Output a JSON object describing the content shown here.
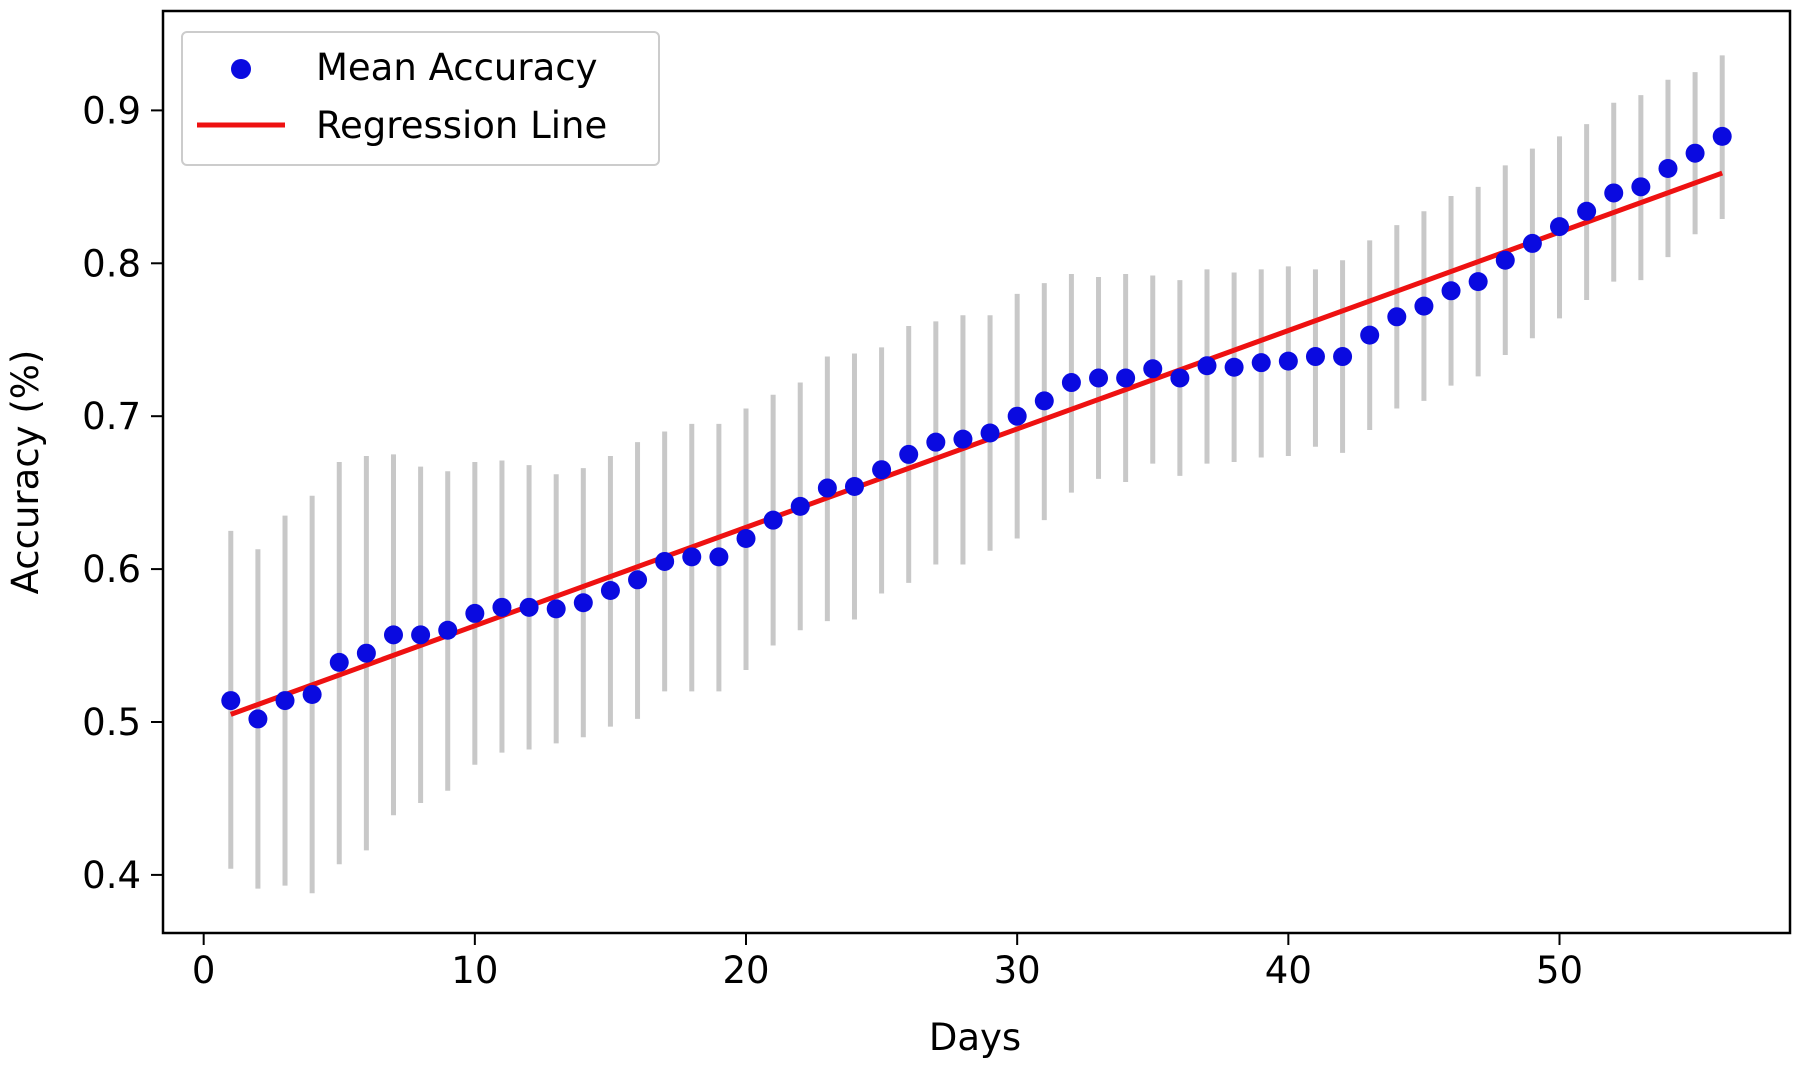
{
  "chart_data": {
    "type": "scatter",
    "xlabel": "Days",
    "ylabel": "Accuracy (%)",
    "xlim": [
      -1.5,
      58.5
    ],
    "ylim": [
      0.362,
      0.965
    ],
    "xticks": [
      0,
      10,
      20,
      30,
      40,
      50
    ],
    "yticks": [
      0.4,
      0.5,
      0.6,
      0.7,
      0.8,
      0.9
    ],
    "xtick_labels": [
      "0",
      "10",
      "20",
      "30",
      "40",
      "50"
    ],
    "ytick_labels": [
      "0.4",
      "0.5",
      "0.6",
      "0.7",
      "0.8",
      "0.9"
    ],
    "grid": false,
    "legend_position": "top-left",
    "legend": [
      {
        "label": "Mean Accuracy",
        "marker": "dot"
      },
      {
        "label": "Regression Line",
        "marker": "line"
      }
    ],
    "colors": {
      "points": "#0a0ae0",
      "regression": "#ee1111",
      "error_bars": "#c8c8c8"
    },
    "series": [
      {
        "name": "Mean Accuracy",
        "x": [
          1,
          2,
          3,
          4,
          5,
          6,
          7,
          8,
          9,
          10,
          11,
          12,
          13,
          14,
          15,
          16,
          17,
          18,
          19,
          20,
          21,
          22,
          23,
          24,
          25,
          26,
          27,
          28,
          29,
          30,
          31,
          32,
          33,
          34,
          35,
          36,
          37,
          38,
          39,
          40,
          41,
          42,
          43,
          44,
          45,
          46,
          47,
          48,
          49,
          50,
          51,
          52,
          53,
          54,
          55,
          56
        ],
        "y": [
          0.514,
          0.502,
          0.514,
          0.518,
          0.539,
          0.545,
          0.557,
          0.557,
          0.56,
          0.571,
          0.575,
          0.575,
          0.574,
          0.578,
          0.586,
          0.593,
          0.605,
          0.608,
          0.608,
          0.62,
          0.632,
          0.641,
          0.653,
          0.654,
          0.665,
          0.675,
          0.683,
          0.685,
          0.689,
          0.7,
          0.71,
          0.722,
          0.725,
          0.725,
          0.731,
          0.725,
          0.733,
          0.732,
          0.735,
          0.736,
          0.739,
          0.739,
          0.753,
          0.765,
          0.772,
          0.782,
          0.788,
          0.802,
          0.813,
          0.824,
          0.834,
          0.846,
          0.85,
          0.862,
          0.872,
          0.883
        ],
        "error_low": [
          0.404,
          0.391,
          0.393,
          0.388,
          0.407,
          0.416,
          0.439,
          0.447,
          0.455,
          0.472,
          0.48,
          0.482,
          0.486,
          0.49,
          0.497,
          0.502,
          0.52,
          0.52,
          0.52,
          0.534,
          0.55,
          0.56,
          0.566,
          0.567,
          0.584,
          0.591,
          0.603,
          0.603,
          0.612,
          0.62,
          0.632,
          0.65,
          0.659,
          0.657,
          0.669,
          0.661,
          0.669,
          0.67,
          0.673,
          0.674,
          0.68,
          0.676,
          0.691,
          0.705,
          0.71,
          0.72,
          0.726,
          0.74,
          0.751,
          0.764,
          0.776,
          0.788,
          0.789,
          0.804,
          0.819,
          0.829
        ],
        "error_high": [
          0.625,
          0.613,
          0.635,
          0.648,
          0.67,
          0.674,
          0.675,
          0.667,
          0.664,
          0.67,
          0.671,
          0.668,
          0.662,
          0.666,
          0.674,
          0.683,
          0.69,
          0.695,
          0.695,
          0.705,
          0.714,
          0.722,
          0.739,
          0.741,
          0.745,
          0.759,
          0.762,
          0.766,
          0.766,
          0.78,
          0.787,
          0.793,
          0.791,
          0.793,
          0.792,
          0.789,
          0.796,
          0.794,
          0.796,
          0.798,
          0.796,
          0.802,
          0.815,
          0.825,
          0.834,
          0.844,
          0.85,
          0.864,
          0.875,
          0.883,
          0.891,
          0.905,
          0.91,
          0.92,
          0.925,
          0.936
        ]
      },
      {
        "name": "Regression Line",
        "x": [
          1,
          56
        ],
        "y": [
          0.505,
          0.859
        ]
      }
    ]
  }
}
